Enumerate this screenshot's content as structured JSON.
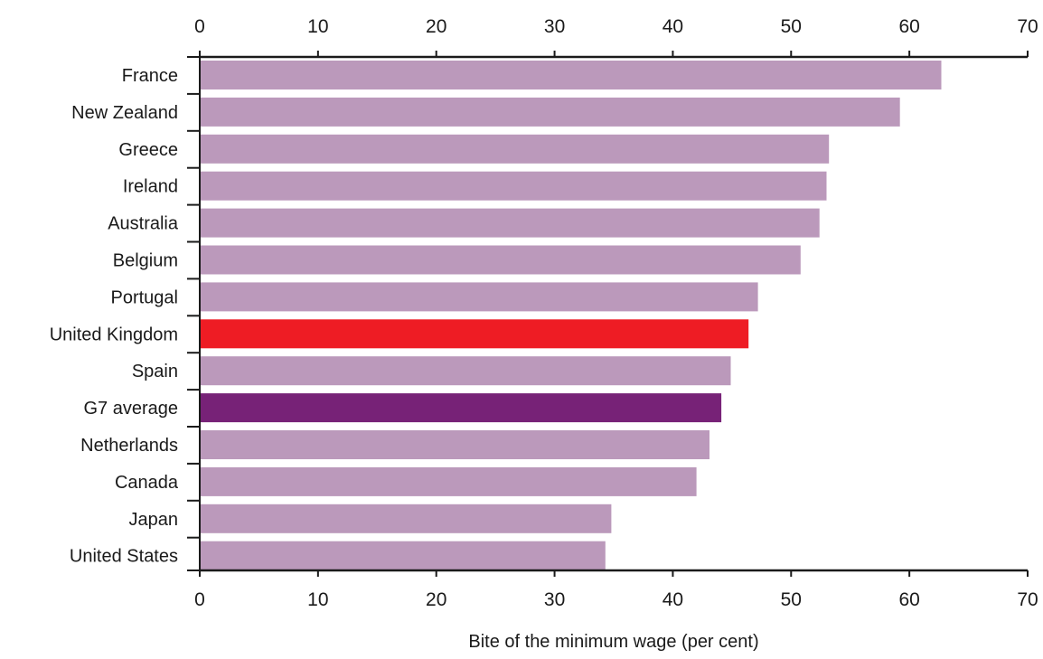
{
  "chart_data": {
    "type": "bar",
    "orientation": "horizontal",
    "categories": [
      "France",
      "New Zealand",
      "Greece",
      "Ireland",
      "Australia",
      "Belgium",
      "Portugal",
      "United Kingdom",
      "Spain",
      "G7 average",
      "Netherlands",
      "Canada",
      "Japan",
      "United States"
    ],
    "values": [
      62.7,
      59.2,
      53.2,
      53.0,
      52.4,
      50.8,
      47.2,
      46.4,
      44.9,
      44.1,
      43.1,
      42.0,
      34.8,
      34.3
    ],
    "bar_colors": [
      "#bb99bb",
      "#bb99bb",
      "#bb99bb",
      "#bb99bb",
      "#bb99bb",
      "#bb99bb",
      "#bb99bb",
      "#ee1c24",
      "#bb99bb",
      "#772277",
      "#bb99bb",
      "#bb99bb",
      "#bb99bb",
      "#bb99bb"
    ],
    "xlim": [
      0,
      70
    ],
    "xticks": [
      "0",
      "10",
      "20",
      "30",
      "40",
      "50",
      "60",
      "70"
    ],
    "xlabel": "Bite of the minimum wage (per cent)",
    "axis_position": "top and bottom",
    "grid": false
  }
}
